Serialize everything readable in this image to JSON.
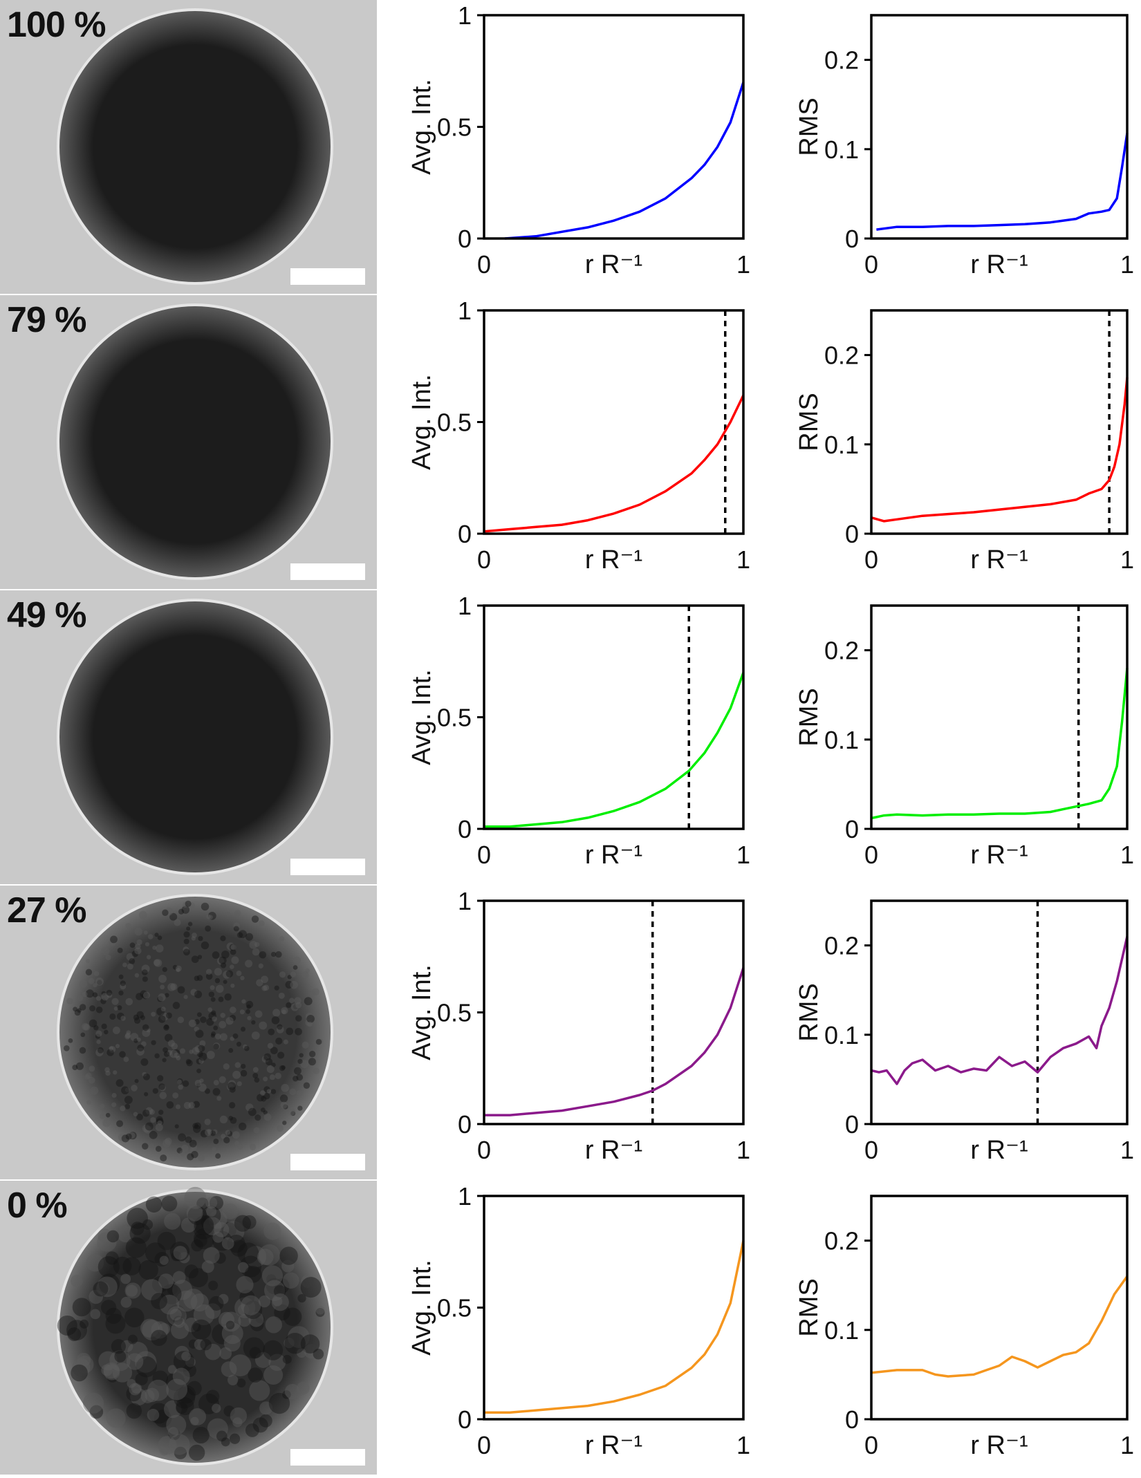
{
  "panels": [
    {
      "label": "100 %",
      "color": "#0000ff",
      "texture": "smooth"
    },
    {
      "label": "79 %",
      "color": "#ff0000",
      "texture": "smooth"
    },
    {
      "label": "49 %",
      "color": "#00ee00",
      "texture": "smooth"
    },
    {
      "label": "27 %",
      "color": "#8b1a8b",
      "texture": "grainy"
    },
    {
      "label": "0 %",
      "color": "#f5961e",
      "texture": "mottled"
    }
  ],
  "chart_data": [
    {
      "type": "line",
      "panel": "100 %",
      "ylabel": "Avg. Int.",
      "xlabel": "r R⁻¹",
      "xlim": [
        0,
        1
      ],
      "ylim": [
        0,
        1
      ],
      "yticks": [
        "0",
        "0.5",
        "1"
      ],
      "xticks": [
        "0",
        "1"
      ],
      "color": "#0000ff",
      "x": [
        0.08,
        0.2,
        0.3,
        0.4,
        0.5,
        0.6,
        0.7,
        0.8,
        0.85,
        0.9,
        0.95,
        1.0
      ],
      "y": [
        0.0,
        0.01,
        0.03,
        0.05,
        0.08,
        0.12,
        0.18,
        0.27,
        0.33,
        0.41,
        0.52,
        0.7
      ]
    },
    {
      "type": "line",
      "panel": "100 %",
      "ylabel": "RMS",
      "xlabel": "r R⁻¹",
      "xlim": [
        0,
        1
      ],
      "ylim": [
        0,
        0.25
      ],
      "yticks": [
        "0",
        "0.1",
        "0.2"
      ],
      "xticks": [
        "0",
        "1"
      ],
      "color": "#0000ff",
      "x": [
        0.02,
        0.1,
        0.2,
        0.3,
        0.4,
        0.5,
        0.6,
        0.7,
        0.8,
        0.85,
        0.9,
        0.93,
        0.96,
        0.98,
        1.0
      ],
      "y": [
        0.01,
        0.013,
        0.013,
        0.014,
        0.014,
        0.015,
        0.016,
        0.018,
        0.022,
        0.028,
        0.03,
        0.032,
        0.045,
        0.08,
        0.118
      ]
    },
    {
      "type": "line",
      "panel": "79 %",
      "ylabel": "Avg. Int.",
      "xlabel": "r R⁻¹",
      "xlim": [
        0,
        1
      ],
      "ylim": [
        0,
        1
      ],
      "yticks": [
        "0",
        "0.5",
        "1"
      ],
      "xticks": [
        "0",
        "1"
      ],
      "color": "#ff0000",
      "dashed_x": 0.93,
      "x": [
        0.0,
        0.1,
        0.2,
        0.3,
        0.4,
        0.5,
        0.6,
        0.7,
        0.8,
        0.85,
        0.9,
        0.95,
        1.0
      ],
      "y": [
        0.01,
        0.02,
        0.03,
        0.04,
        0.06,
        0.09,
        0.13,
        0.19,
        0.27,
        0.33,
        0.4,
        0.5,
        0.62
      ]
    },
    {
      "type": "line",
      "panel": "79 %",
      "ylabel": "RMS",
      "xlabel": "r R⁻¹",
      "xlim": [
        0,
        1
      ],
      "ylim": [
        0,
        0.25
      ],
      "yticks": [
        "0",
        "0.1",
        "0.2"
      ],
      "xticks": [
        "0",
        "1"
      ],
      "color": "#ff0000",
      "dashed_x": 0.93,
      "x": [
        0.0,
        0.05,
        0.1,
        0.2,
        0.3,
        0.4,
        0.5,
        0.6,
        0.7,
        0.8,
        0.85,
        0.9,
        0.93,
        0.95,
        0.97,
        0.99,
        1.0
      ],
      "y": [
        0.018,
        0.014,
        0.016,
        0.02,
        0.022,
        0.024,
        0.027,
        0.03,
        0.033,
        0.038,
        0.045,
        0.05,
        0.06,
        0.075,
        0.1,
        0.145,
        0.175
      ]
    },
    {
      "type": "line",
      "panel": "49 %",
      "ylabel": "Avg. Int.",
      "xlabel": "r R⁻¹",
      "xlim": [
        0,
        1
      ],
      "ylim": [
        0,
        1
      ],
      "yticks": [
        "0",
        "0.5",
        "1"
      ],
      "xticks": [
        "0",
        "1"
      ],
      "color": "#00ee00",
      "dashed_x": 0.79,
      "x": [
        0.0,
        0.1,
        0.2,
        0.3,
        0.4,
        0.5,
        0.6,
        0.7,
        0.79,
        0.85,
        0.9,
        0.95,
        1.0
      ],
      "y": [
        0.01,
        0.01,
        0.02,
        0.03,
        0.05,
        0.08,
        0.12,
        0.18,
        0.26,
        0.34,
        0.43,
        0.54,
        0.7
      ]
    },
    {
      "type": "line",
      "panel": "49 %",
      "ylabel": "RMS",
      "xlabel": "r R⁻¹",
      "xlim": [
        0,
        1
      ],
      "ylim": [
        0,
        0.25
      ],
      "yticks": [
        "0",
        "0.1",
        "0.2"
      ],
      "xticks": [
        "0",
        "1"
      ],
      "color": "#00ee00",
      "dashed_x": 0.81,
      "x": [
        0.0,
        0.05,
        0.1,
        0.2,
        0.3,
        0.4,
        0.5,
        0.6,
        0.7,
        0.75,
        0.8,
        0.85,
        0.9,
        0.93,
        0.96,
        0.98,
        1.0
      ],
      "y": [
        0.012,
        0.015,
        0.016,
        0.015,
        0.016,
        0.016,
        0.017,
        0.017,
        0.019,
        0.022,
        0.025,
        0.028,
        0.032,
        0.045,
        0.07,
        0.12,
        0.18
      ]
    },
    {
      "type": "line",
      "panel": "27 %",
      "ylabel": "Avg. Int.",
      "xlabel": "r R⁻¹",
      "xlim": [
        0,
        1
      ],
      "ylim": [
        0,
        1
      ],
      "yticks": [
        "0",
        "0.5",
        "1"
      ],
      "xticks": [
        "0",
        "1"
      ],
      "color": "#8b1a8b",
      "dashed_x": 0.65,
      "x": [
        0.0,
        0.1,
        0.2,
        0.3,
        0.4,
        0.5,
        0.6,
        0.65,
        0.7,
        0.8,
        0.85,
        0.9,
        0.95,
        1.0
      ],
      "y": [
        0.04,
        0.04,
        0.05,
        0.06,
        0.08,
        0.1,
        0.13,
        0.15,
        0.18,
        0.26,
        0.32,
        0.4,
        0.52,
        0.7
      ]
    },
    {
      "type": "line",
      "panel": "27 %",
      "ylabel": "RMS",
      "xlabel": "r R⁻¹",
      "xlim": [
        0,
        1
      ],
      "ylim": [
        0,
        0.25
      ],
      "yticks": [
        "0",
        "0.1",
        "0.2"
      ],
      "xticks": [
        "0",
        "1"
      ],
      "color": "#8b1a8b",
      "dashed_x": 0.65,
      "x": [
        0.0,
        0.03,
        0.06,
        0.1,
        0.13,
        0.16,
        0.2,
        0.25,
        0.3,
        0.35,
        0.4,
        0.45,
        0.5,
        0.55,
        0.6,
        0.65,
        0.7,
        0.75,
        0.8,
        0.85,
        0.88,
        0.9,
        0.93,
        0.96,
        1.0
      ],
      "y": [
        0.06,
        0.058,
        0.06,
        0.045,
        0.06,
        0.068,
        0.072,
        0.06,
        0.065,
        0.058,
        0.062,
        0.06,
        0.075,
        0.065,
        0.07,
        0.058,
        0.075,
        0.085,
        0.09,
        0.098,
        0.085,
        0.11,
        0.13,
        0.16,
        0.21
      ]
    },
    {
      "type": "line",
      "panel": "0 %",
      "ylabel": "Avg. Int.",
      "xlabel": "r R⁻¹",
      "xlim": [
        0,
        1
      ],
      "ylim": [
        0,
        1
      ],
      "yticks": [
        "0",
        "0.5",
        "1"
      ],
      "xticks": [
        "0",
        "1"
      ],
      "color": "#f5961e",
      "x": [
        0.0,
        0.1,
        0.2,
        0.3,
        0.4,
        0.5,
        0.6,
        0.7,
        0.8,
        0.85,
        0.9,
        0.95,
        1.0
      ],
      "y": [
        0.03,
        0.03,
        0.04,
        0.05,
        0.06,
        0.08,
        0.11,
        0.15,
        0.23,
        0.29,
        0.38,
        0.52,
        0.8
      ]
    },
    {
      "type": "line",
      "panel": "0 %",
      "ylabel": "RMS",
      "xlabel": "r R⁻¹",
      "xlim": [
        0,
        1
      ],
      "ylim": [
        0,
        0.25
      ],
      "yticks": [
        "0",
        "0.1",
        "0.2"
      ],
      "xticks": [
        "0",
        "1"
      ],
      "color": "#f5961e",
      "x": [
        0.0,
        0.1,
        0.2,
        0.25,
        0.3,
        0.4,
        0.45,
        0.5,
        0.55,
        0.6,
        0.65,
        0.7,
        0.75,
        0.8,
        0.85,
        0.9,
        0.95,
        1.0
      ],
      "y": [
        0.052,
        0.055,
        0.055,
        0.05,
        0.048,
        0.05,
        0.055,
        0.06,
        0.07,
        0.065,
        0.058,
        0.065,
        0.072,
        0.075,
        0.085,
        0.11,
        0.14,
        0.16
      ]
    }
  ]
}
